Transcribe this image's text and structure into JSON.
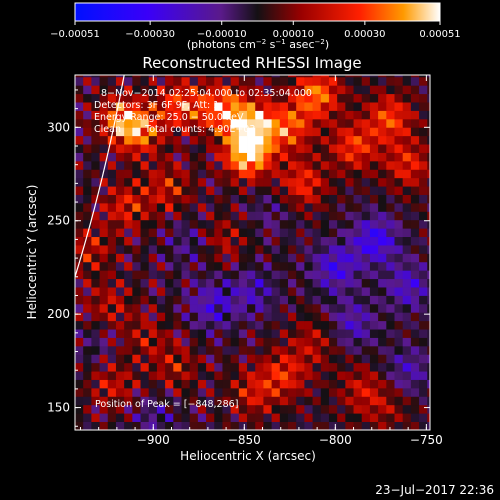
{
  "chart_data": {
    "type": "heatmap",
    "title": "Reconstructed RHESSI Image",
    "xlabel": "Heliocentric X (arcsec)",
    "ylabel": "Heliocentric Y (arcsec)",
    "xlim": [
      -943,
      -748
    ],
    "ylim": [
      138,
      328
    ],
    "x_ticks": [
      -900,
      -850,
      -800,
      -750
    ],
    "x_tick_labels": [
      "−900",
      "−850",
      "−800",
      "−750"
    ],
    "y_ticks": [
      150,
      200,
      250,
      300
    ],
    "y_tick_labels": [
      "150",
      "200",
      "250",
      "300"
    ],
    "grid": false,
    "colorbar": {
      "range": [
        -0.00051,
        0.00051
      ],
      "tick_values": [
        -0.00051,
        -0.0003,
        -0.0001,
        0.0001,
        0.0003,
        0.00051
      ],
      "tick_labels": [
        "−0.00051",
        "−0.00030",
        "−0.00010",
        "0.00010",
        "0.00030",
        "0.00051"
      ],
      "unit_prefix": "(photons cm",
      "unit_sup1": "−2",
      "unit_mid1": " s",
      "unit_sup2": "−1",
      "unit_mid2": " asec",
      "unit_sup3": "−2",
      "unit_suffix": ")"
    },
    "peak": [
      -848,
      286
    ],
    "limb_x_at_top_y": -916,
    "limb_x_at_left_y": 220,
    "features": [
      {
        "x": -918,
        "y": 305,
        "value": 0.00028
      },
      {
        "x": -908,
        "y": 298,
        "value": 0.00032
      },
      {
        "x": -885,
        "y": 312,
        "value": 0.0003
      },
      {
        "x": -862,
        "y": 310,
        "value": 0.00036
      },
      {
        "x": -848,
        "y": 286,
        "value": 0.00051
      },
      {
        "x": -845,
        "y": 302,
        "value": 0.00038
      },
      {
        "x": -825,
        "y": 300,
        "value": 0.0003
      },
      {
        "x": -810,
        "y": 318,
        "value": 0.00036
      },
      {
        "x": -790,
        "y": 290,
        "value": 0.00028
      },
      {
        "x": -770,
        "y": 305,
        "value": 0.0003
      },
      {
        "x": -760,
        "y": 280,
        "value": 0.00024
      },
      {
        "x": -915,
        "y": 258,
        "value": 0.00022
      },
      {
        "x": -892,
        "y": 268,
        "value": 0.0002
      },
      {
        "x": -818,
        "y": 270,
        "value": 0.00026
      },
      {
        "x": -862,
        "y": 240,
        "value": 0.00015
      },
      {
        "x": -935,
        "y": 235,
        "value": 0.00018
      },
      {
        "x": -925,
        "y": 205,
        "value": 0.00016
      },
      {
        "x": -905,
        "y": 188,
        "value": 0.00014
      },
      {
        "x": -888,
        "y": 172,
        "value": 0.00016
      },
      {
        "x": -922,
        "y": 162,
        "value": 0.00018
      },
      {
        "x": -845,
        "y": 158,
        "value": 0.0002
      },
      {
        "x": -828,
        "y": 168,
        "value": 0.00024
      },
      {
        "x": -812,
        "y": 185,
        "value": 0.00016
      },
      {
        "x": -785,
        "y": 160,
        "value": 0.00018
      },
      {
        "x": -772,
        "y": 150,
        "value": 0.00012
      },
      {
        "x": -868,
        "y": 205,
        "value": -0.00022
      },
      {
        "x": -845,
        "y": 212,
        "value": -0.00018
      },
      {
        "x": -800,
        "y": 225,
        "value": -0.00026
      },
      {
        "x": -778,
        "y": 240,
        "value": -0.0003
      },
      {
        "x": -760,
        "y": 215,
        "value": -0.00022
      },
      {
        "x": -790,
        "y": 195,
        "value": -0.0002
      },
      {
        "x": -880,
        "y": 238,
        "value": -0.00012
      },
      {
        "x": -835,
        "y": 255,
        "value": -0.0001
      },
      {
        "x": -930,
        "y": 185,
        "value": -8e-05
      },
      {
        "x": -900,
        "y": 145,
        "value": -0.00012
      },
      {
        "x": -760,
        "y": 170,
        "value": -0.00018
      }
    ]
  },
  "annotations": {
    "date_range": "8−Nov−2014 02:25:04.000 to 02:35:04.000",
    "detectors": "Detectors: 3F 6F 9F, Att: 1",
    "energy": "Energy Range: 25.0 − 50.0 keV",
    "clean_label": "Clean",
    "total_counts": "Total counts: 4.90E+03",
    "peak_text": "Position of Peak = [−848,286]"
  },
  "timestamp": "23−Jul−2017 22:36"
}
